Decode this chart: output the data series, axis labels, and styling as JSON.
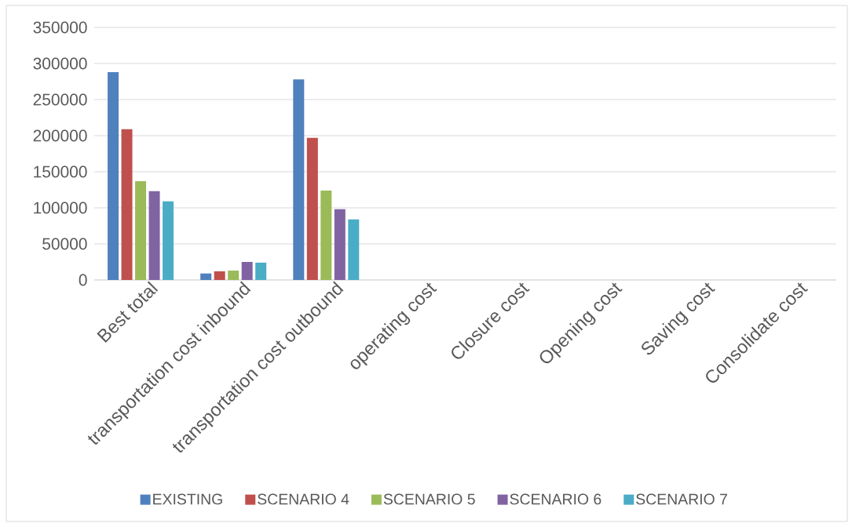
{
  "chart_data": {
    "type": "bar",
    "categories": [
      "Best total",
      "transportation cost inbound",
      "transportation cost outbound",
      "operating cost",
      "Closure cost",
      "Opening cost",
      "Saving cost",
      "Consolidate cost"
    ],
    "series": [
      {
        "name": "EXISTING",
        "color": "#4f81bd",
        "values": [
          288000,
          9000,
          278000,
          null,
          null,
          null,
          null,
          null
        ]
      },
      {
        "name": "SCENARIO 4",
        "color": "#c0504d",
        "values": [
          209000,
          12000,
          197000,
          null,
          null,
          null,
          null,
          null
        ]
      },
      {
        "name": "SCENARIO 5",
        "color": "#9bbb59",
        "values": [
          137000,
          13000,
          124000,
          null,
          null,
          null,
          null,
          null
        ]
      },
      {
        "name": "SCENARIO 6",
        "color": "#8064a2",
        "values": [
          123000,
          25000,
          98000,
          null,
          null,
          null,
          null,
          null
        ]
      },
      {
        "name": "SCENARIO 7",
        "color": "#4bacc6",
        "values": [
          109000,
          24000,
          84000,
          null,
          null,
          null,
          null,
          null
        ]
      }
    ],
    "ylim": [
      0,
      350000
    ],
    "yticks": [
      0,
      50000,
      100000,
      150000,
      200000,
      250000,
      300000,
      350000
    ],
    "grid": "y",
    "legend": "bottom"
  }
}
